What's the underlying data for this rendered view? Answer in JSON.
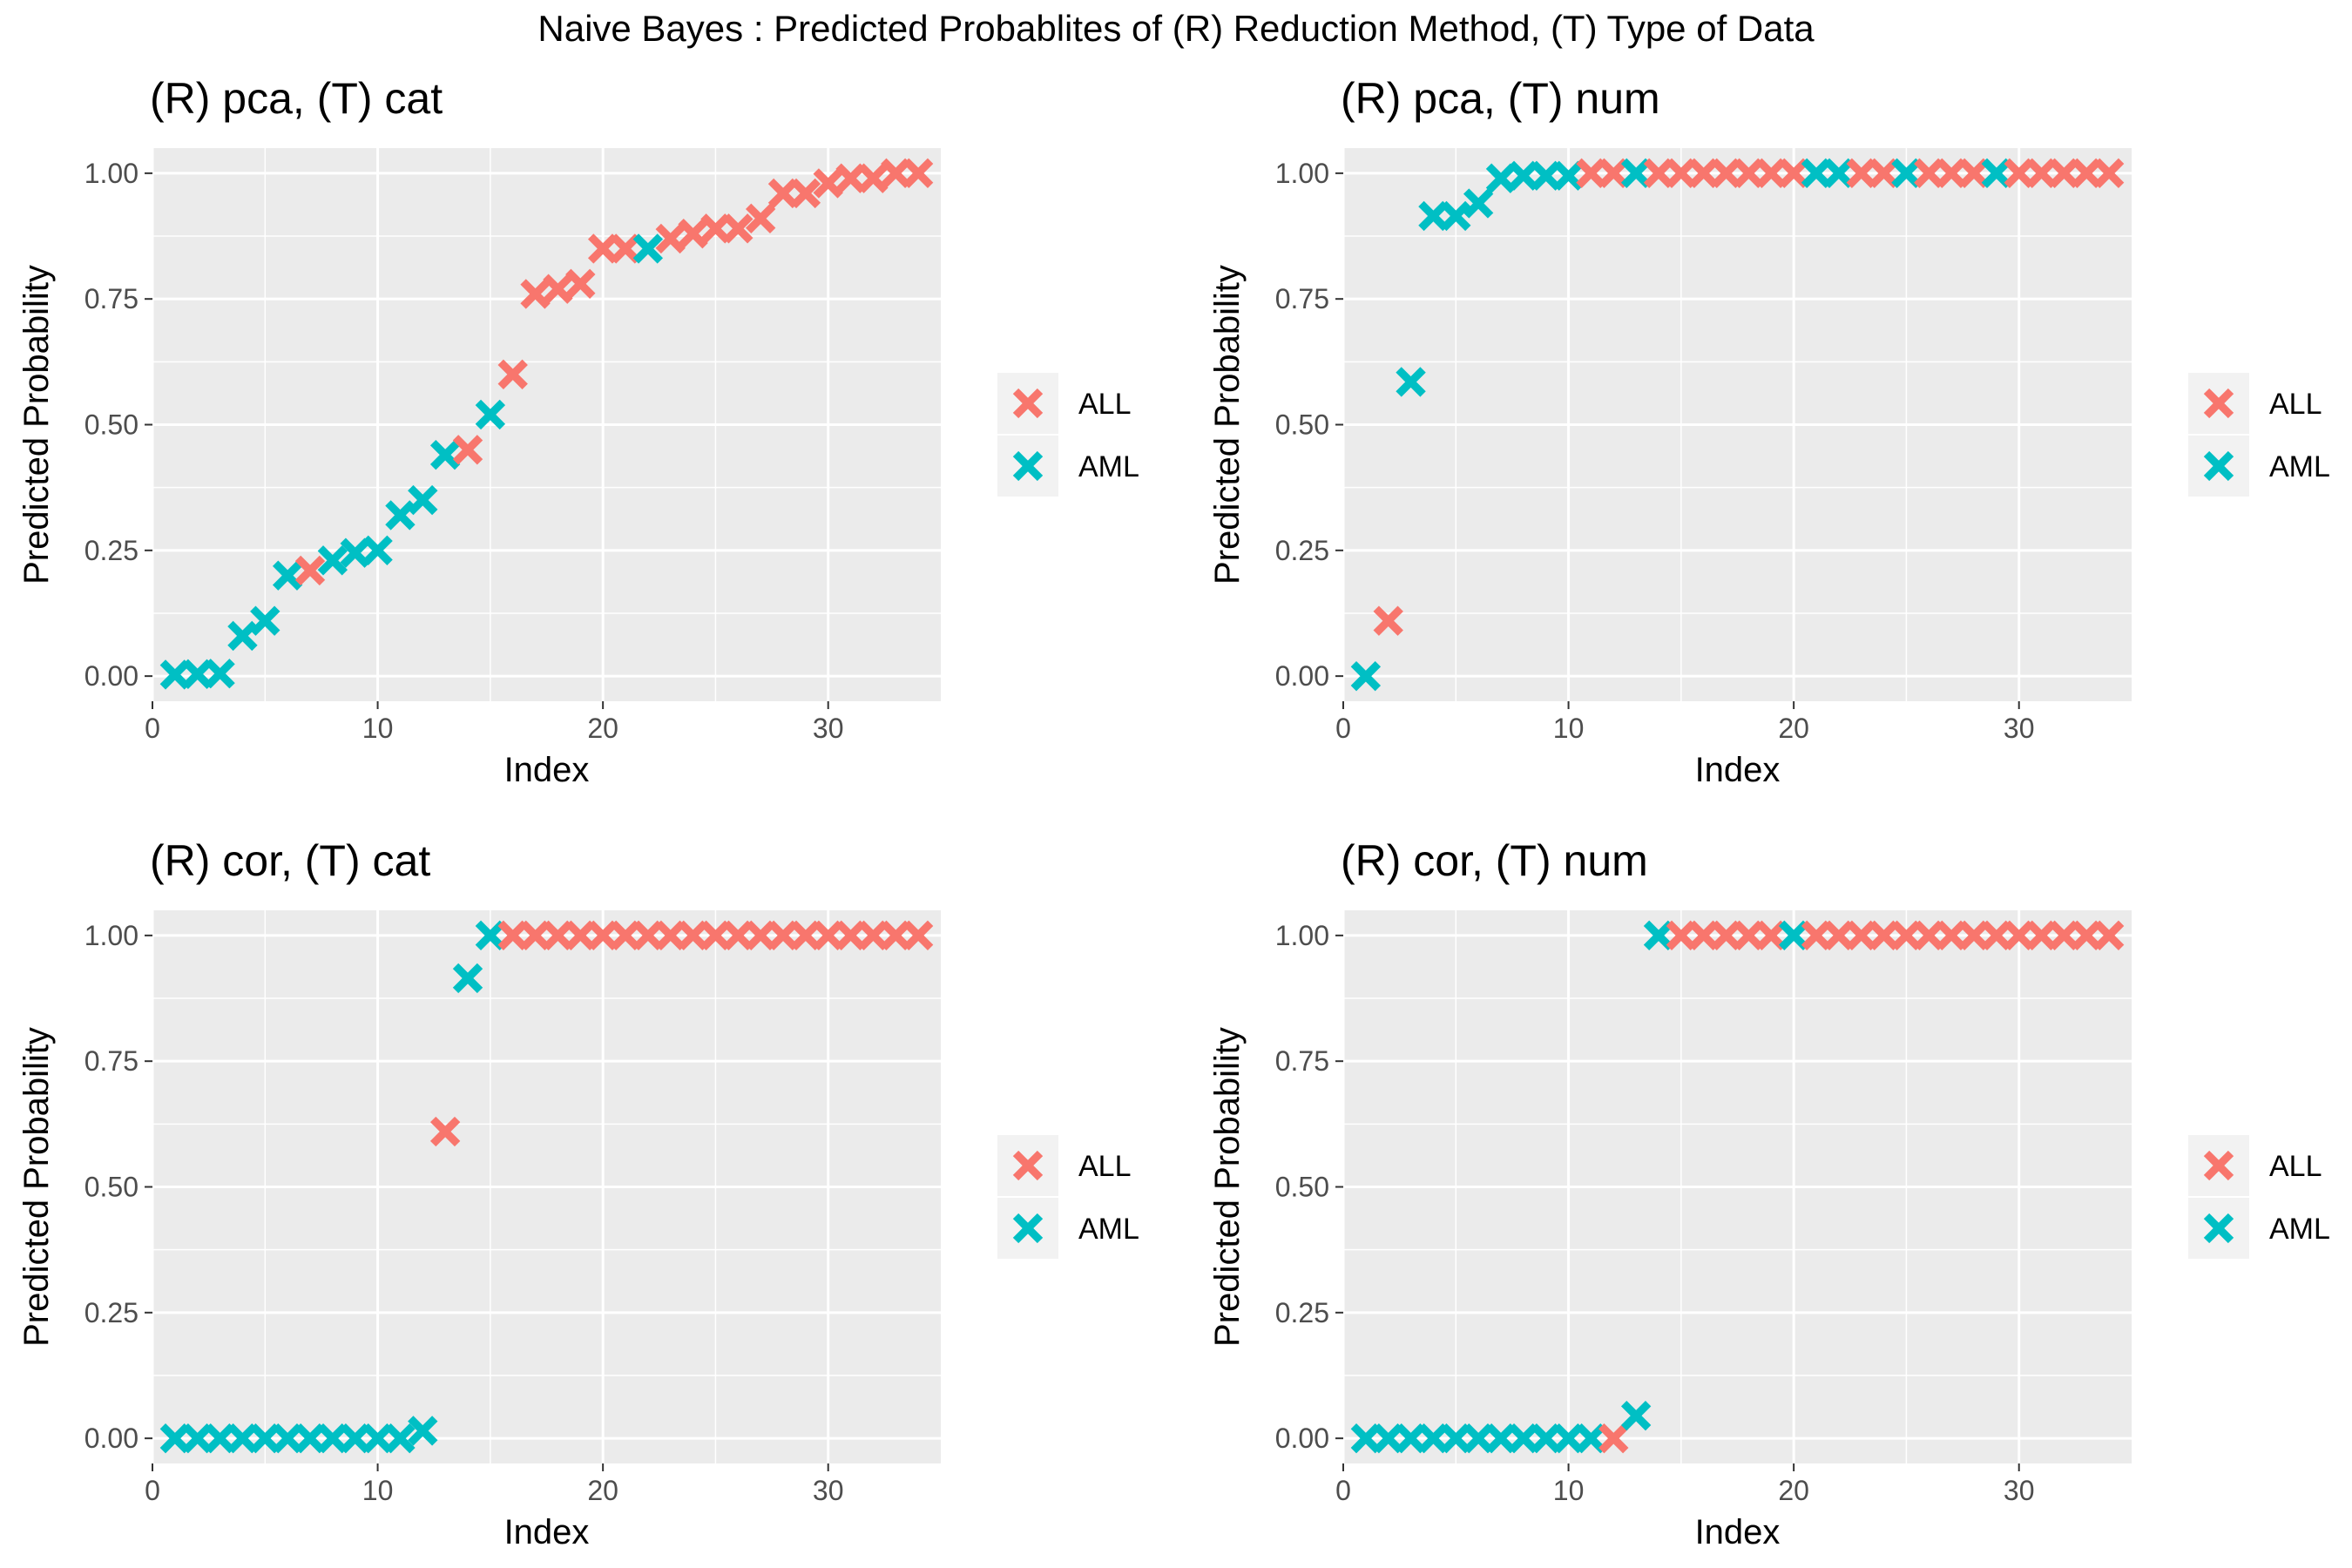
{
  "figure_title": "Naive Bayes : Predicted Probablites of (R) Reduction Method, (T) Type of Data",
  "colors": {
    "ALL": "#F8766D",
    "AML": "#00BFC4",
    "panel_bg": "#EBEBEB",
    "grid": "#FFFFFF"
  },
  "legend": [
    "ALL",
    "AML"
  ],
  "chart_data": [
    {
      "type": "scatter",
      "title": "(R) pca, (T) cat",
      "xlabel": "Index",
      "ylabel": "Predicted Probability",
      "xlim": [
        0,
        35
      ],
      "ylim": [
        0,
        1
      ],
      "xticks": [
        0,
        10,
        20,
        30
      ],
      "yticks": [
        "0.00",
        "0.25",
        "0.50",
        "0.75",
        "1.00"
      ],
      "grid": true,
      "legend_position": "right",
      "x": [
        1,
        2,
        3,
        4,
        5,
        6,
        7,
        8,
        9,
        10,
        11,
        12,
        13,
        14,
        15,
        16,
        17,
        18,
        19,
        20,
        21,
        22,
        23,
        24,
        25,
        26,
        27,
        28,
        29,
        30,
        31,
        32,
        33,
        34
      ],
      "y": [
        0.003,
        0.004,
        0.005,
        0.08,
        0.11,
        0.2,
        0.21,
        0.23,
        0.245,
        0.25,
        0.32,
        0.35,
        0.44,
        0.45,
        0.52,
        0.6,
        0.76,
        0.77,
        0.78,
        0.85,
        0.85,
        0.85,
        0.87,
        0.88,
        0.89,
        0.89,
        0.91,
        0.96,
        0.96,
        0.98,
        0.99,
        0.99,
        1.0,
        1.0
      ],
      "class": [
        "AML",
        "AML",
        "AML",
        "AML",
        "AML",
        "AML",
        "ALL",
        "AML",
        "AML",
        "AML",
        "AML",
        "AML",
        "AML",
        "ALL",
        "AML",
        "ALL",
        "ALL",
        "ALL",
        "ALL",
        "ALL",
        "ALL",
        "AML",
        "ALL",
        "ALL",
        "ALL",
        "ALL",
        "ALL",
        "ALL",
        "ALL",
        "ALL",
        "ALL",
        "ALL",
        "ALL",
        "ALL"
      ]
    },
    {
      "type": "scatter",
      "title": "(R) pca, (T) num",
      "xlabel": "Index",
      "ylabel": "Predicted Probability",
      "xlim": [
        0,
        35
      ],
      "ylim": [
        0,
        1
      ],
      "xticks": [
        0,
        10,
        20,
        30
      ],
      "yticks": [
        "0.00",
        "0.25",
        "0.50",
        "0.75",
        "1.00"
      ],
      "grid": true,
      "legend_position": "right",
      "x": [
        1,
        2,
        3,
        4,
        5,
        6,
        7,
        8,
        9,
        10,
        11,
        12,
        13,
        14,
        15,
        16,
        17,
        18,
        19,
        20,
        21,
        22,
        23,
        24,
        25,
        26,
        27,
        28,
        29,
        30,
        31,
        32,
        33,
        34
      ],
      "y": [
        0.0,
        0.11,
        0.585,
        0.915,
        0.915,
        0.94,
        0.99,
        0.995,
        0.995,
        0.995,
        1,
        1,
        1,
        1,
        1,
        1,
        1,
        1,
        1,
        1,
        1,
        1,
        1,
        1,
        1,
        1,
        1,
        1,
        1,
        1,
        1,
        1,
        1,
        1
      ],
      "class": [
        "AML",
        "ALL",
        "AML",
        "AML",
        "AML",
        "AML",
        "AML",
        "AML",
        "AML",
        "AML",
        "ALL",
        "ALL",
        "AML",
        "ALL",
        "ALL",
        "ALL",
        "ALL",
        "ALL",
        "ALL",
        "ALL",
        "AML",
        "AML",
        "ALL",
        "ALL",
        "AML",
        "ALL",
        "ALL",
        "ALL",
        "AML",
        "ALL",
        "ALL",
        "ALL",
        "ALL",
        "ALL"
      ]
    },
    {
      "type": "scatter",
      "title": "(R) cor, (T) cat",
      "xlabel": "Index",
      "ylabel": "Predicted Probability",
      "xlim": [
        0,
        35
      ],
      "ylim": [
        0,
        1
      ],
      "xticks": [
        0,
        10,
        20,
        30
      ],
      "yticks": [
        "0.00",
        "0.25",
        "0.50",
        "0.75",
        "1.00"
      ],
      "grid": true,
      "legend_position": "right",
      "x": [
        1,
        2,
        3,
        4,
        5,
        6,
        7,
        8,
        9,
        10,
        11,
        12,
        13,
        14,
        15,
        16,
        17,
        18,
        19,
        20,
        21,
        22,
        23,
        24,
        25,
        26,
        27,
        28,
        29,
        30,
        31,
        32,
        33,
        34
      ],
      "y": [
        0,
        0,
        0,
        0,
        0,
        0,
        0,
        0,
        0,
        0,
        0,
        0.015,
        0.61,
        0.915,
        1,
        1,
        1,
        1,
        1,
        1,
        1,
        1,
        1,
        1,
        1,
        1,
        1,
        1,
        1,
        1,
        1,
        1,
        1,
        1
      ],
      "class": [
        "AML",
        "AML",
        "AML",
        "AML",
        "AML",
        "AML",
        "AML",
        "AML",
        "AML",
        "AML",
        "AML",
        "AML",
        "ALL",
        "AML",
        "AML",
        "ALL",
        "ALL",
        "ALL",
        "ALL",
        "ALL",
        "ALL",
        "ALL",
        "ALL",
        "ALL",
        "ALL",
        "ALL",
        "ALL",
        "ALL",
        "ALL",
        "ALL",
        "ALL",
        "ALL",
        "ALL",
        "ALL"
      ]
    },
    {
      "type": "scatter",
      "title": "(R) cor, (T) num",
      "xlabel": "Index",
      "ylabel": "Predicted Probability",
      "xlim": [
        0,
        35
      ],
      "ylim": [
        0,
        1
      ],
      "xticks": [
        0,
        10,
        20,
        30
      ],
      "yticks": [
        "0.00",
        "0.25",
        "0.50",
        "0.75",
        "1.00"
      ],
      "grid": true,
      "legend_position": "right",
      "x": [
        1,
        2,
        3,
        4,
        5,
        6,
        7,
        8,
        9,
        10,
        11,
        12,
        13,
        14,
        15,
        16,
        17,
        18,
        19,
        20,
        21,
        22,
        23,
        24,
        25,
        26,
        27,
        28,
        29,
        30,
        31,
        32,
        33,
        34
      ],
      "y": [
        0,
        0,
        0,
        0,
        0,
        0,
        0,
        0,
        0,
        0,
        0,
        0,
        0.045,
        1,
        1,
        1,
        1,
        1,
        1,
        1,
        1,
        1,
        1,
        1,
        1,
        1,
        1,
        1,
        1,
        1,
        1,
        1,
        1,
        1
      ],
      "class": [
        "AML",
        "AML",
        "AML",
        "AML",
        "AML",
        "AML",
        "AML",
        "AML",
        "AML",
        "AML",
        "AML",
        "ALL",
        "AML",
        "AML",
        "ALL",
        "ALL",
        "ALL",
        "ALL",
        "ALL",
        "AML",
        "ALL",
        "ALL",
        "ALL",
        "ALL",
        "ALL",
        "ALL",
        "ALL",
        "ALL",
        "ALL",
        "ALL",
        "ALL",
        "ALL",
        "ALL",
        "ALL"
      ]
    }
  ]
}
